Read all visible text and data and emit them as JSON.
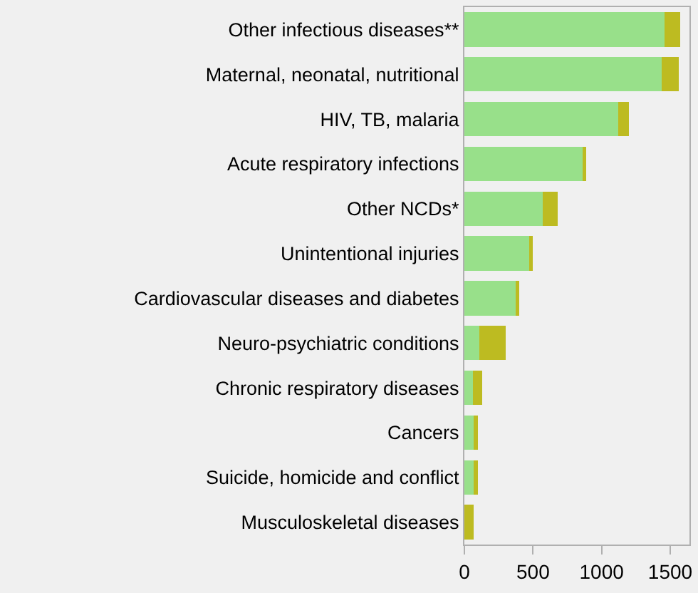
{
  "chart_data": {
    "type": "bar",
    "orientation": "horizontal",
    "stacked": true,
    "categories": [
      "Other infectious diseases**",
      "Maternal, neonatal, nutritional",
      "HIV, TB, malaria",
      "Acute respiratory infections",
      "Other NCDs*",
      "Unintentional injuries",
      "Cardiovascular diseases and diabetes",
      "Neuro-psychiatric conditions",
      "Chronic respiratory diseases",
      "Cancers",
      "Suicide, homicide and conflict",
      "Musculoskeletal diseases"
    ],
    "series": [
      {
        "color": "#98e08a",
        "values": [
          1460,
          1440,
          1120,
          860,
          570,
          470,
          380,
          110,
          60,
          70,
          70,
          0
        ]
      },
      {
        "color": "#bdbb21",
        "values": [
          110,
          120,
          80,
          30,
          110,
          30,
          20,
          190,
          70,
          30,
          30,
          70
        ]
      }
    ],
    "xlim": [
      0,
      1640
    ],
    "xticks": [
      0,
      500,
      1000,
      1500
    ],
    "grid": false
  }
}
